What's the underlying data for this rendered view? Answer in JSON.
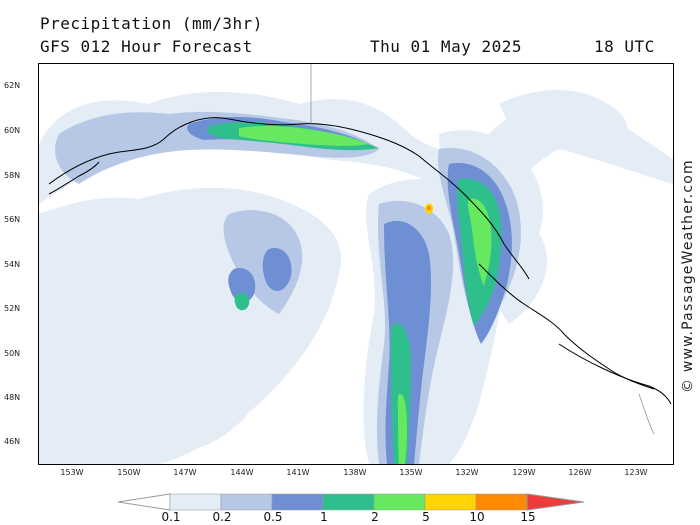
{
  "header": {
    "title": "Precipitation (mm/3hr)",
    "subtitle": "GFS 012 Hour Forecast",
    "date": "Thu 01 May 2025",
    "time": "18 UTC"
  },
  "credit": "© www.PassageWeather.com",
  "map": {
    "lat_labels": [
      "62N",
      "60N",
      "58N",
      "56N",
      "54N",
      "52N",
      "50N",
      "48N",
      "46N"
    ],
    "lon_labels": [
      "153W",
      "150W",
      "147W",
      "144W",
      "141W",
      "138W",
      "135W",
      "132W",
      "129W",
      "126W",
      "123W"
    ],
    "colors": {
      "p01": "#e4ecf6",
      "p02": "#b6c8e6",
      "p05": "#6f8fd4",
      "p1": "#2fbf8c",
      "p2": "#66e860",
      "p5": "#ffd400",
      "p10": "#ff8a00",
      "p15": "#ee3b3b",
      "coast": "#000000",
      "border": "#777777"
    }
  },
  "legend": {
    "labels": [
      "0.1",
      "0.2",
      "0.5",
      "1",
      "2",
      "5",
      "10",
      "15"
    ],
    "colors": [
      "#ffffff",
      "#e4ecf6",
      "#b6c8e6",
      "#6f8fd4",
      "#2fbf8c",
      "#66e860",
      "#ffd400",
      "#ff8a00",
      "#ee3b3b"
    ]
  }
}
